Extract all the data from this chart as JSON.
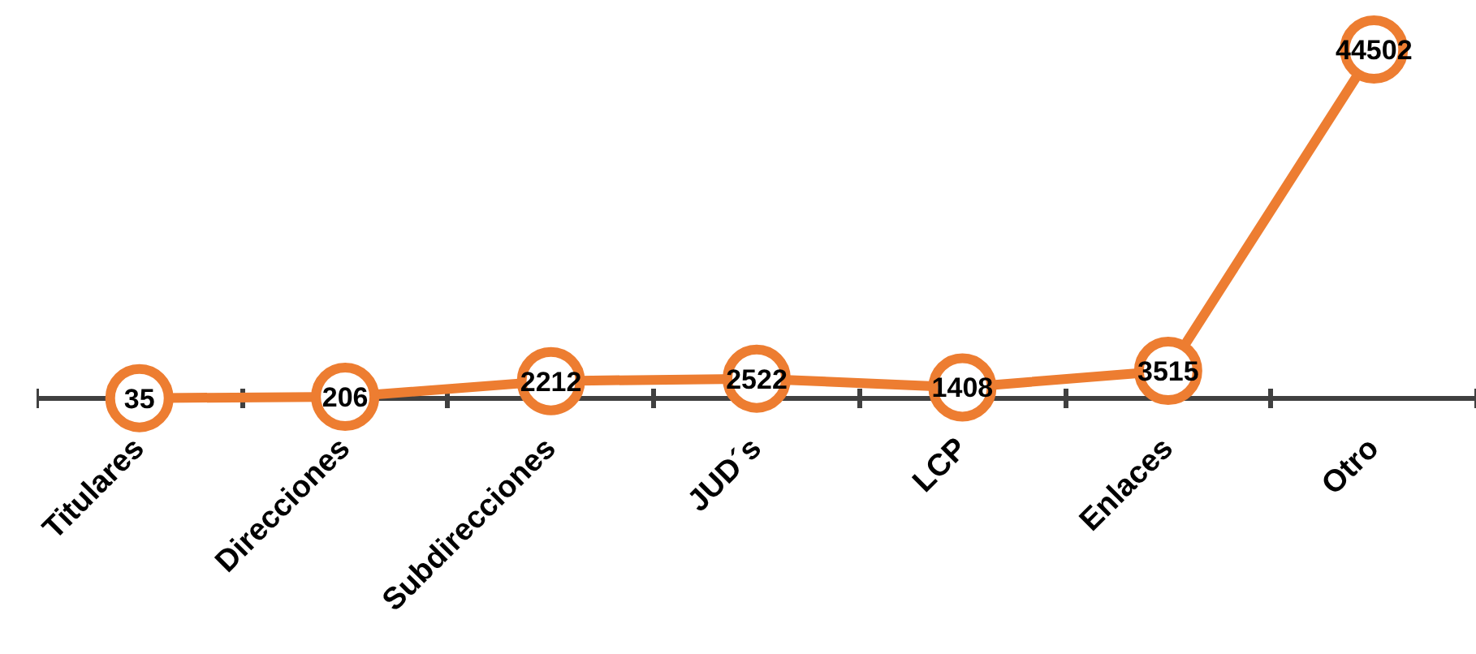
{
  "chart_data": {
    "type": "line",
    "categories": [
      "Titulares",
      "Direcciones",
      "Subdirecciones",
      "JUD´s",
      "LCP",
      "Enlaces",
      "Otro"
    ],
    "series": [
      {
        "color": "#ed7d31",
        "values": [
          35,
          206,
          2212,
          2522,
          1408,
          3515,
          44502
        ]
      }
    ],
    "data_labels": true,
    "marker": "circle",
    "line_style": "solid",
    "grid": false
  }
}
